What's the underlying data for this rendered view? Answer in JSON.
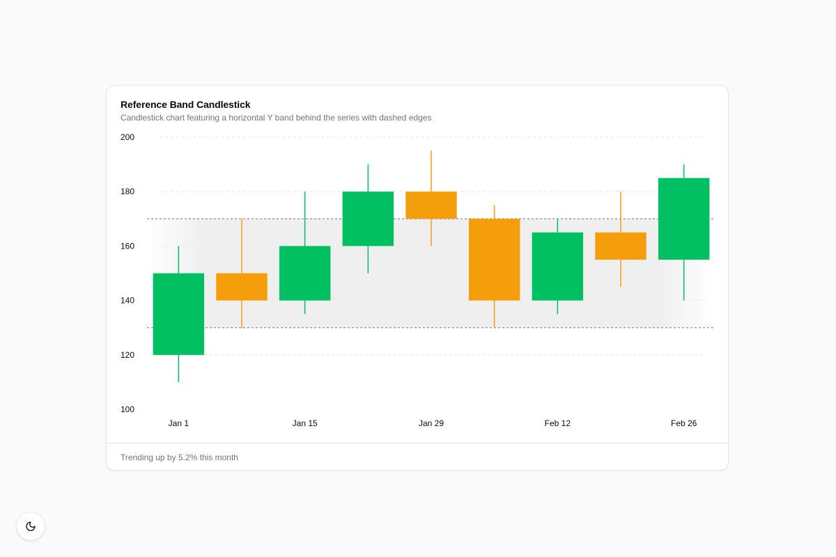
{
  "card": {
    "title": "Reference Band Candlestick",
    "subtitle": "Candlestick chart featuring a horizontal Y band behind the series with dashed edges",
    "footer": "Trending up by 5.2% this month"
  },
  "theme_toggle": {
    "icon": "moon-icon"
  },
  "colors": {
    "up": "#00c062",
    "down": "#f59e0b",
    "band_fill": "#efefef",
    "band_edge": "#737373",
    "grid": "#e5e5e5",
    "tick_text": "#0a0a0a"
  },
  "chart_data": {
    "type": "candlestick",
    "title": "Reference Band Candlestick",
    "subtitle": "Candlestick chart featuring a horizontal Y band behind the series with dashed edges",
    "ylim": [
      100,
      200
    ],
    "yticks": [
      100,
      120,
      140,
      160,
      180,
      200
    ],
    "xtick_labels": [
      {
        "index": 0,
        "label": "Jan 1"
      },
      {
        "index": 2,
        "label": "Jan 15"
      },
      {
        "index": 4,
        "label": "Jan 29"
      },
      {
        "index": 6,
        "label": "Feb 12"
      },
      {
        "index": 8,
        "label": "Feb 26"
      }
    ],
    "grid": true,
    "reference_band": {
      "y1": 130,
      "y2": 170,
      "edges": "dashed"
    },
    "candles": [
      {
        "open": 120,
        "high": 160,
        "low": 110,
        "close": 150
      },
      {
        "open": 150,
        "high": 170,
        "low": 130,
        "close": 140
      },
      {
        "open": 140,
        "high": 180,
        "low": 135,
        "close": 160
      },
      {
        "open": 160,
        "high": 190,
        "low": 150,
        "close": 180
      },
      {
        "open": 180,
        "high": 195,
        "low": 160,
        "close": 170
      },
      {
        "open": 170,
        "high": 175,
        "low": 130,
        "close": 140
      },
      {
        "open": 140,
        "high": 170,
        "low": 135,
        "close": 165
      },
      {
        "open": 165,
        "high": 180,
        "low": 145,
        "close": 155
      },
      {
        "open": 155,
        "high": 190,
        "low": 140,
        "close": 185
      }
    ]
  }
}
